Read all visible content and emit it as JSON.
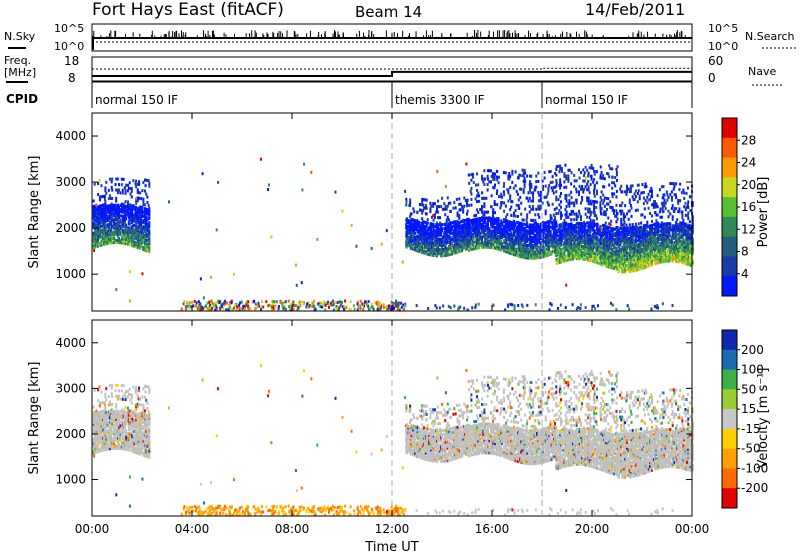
{
  "header": {
    "station": "Fort Hays East (fitACF)",
    "beam": "Beam 14",
    "date": "14/Feb/2011"
  },
  "strip_labels": {
    "nsky": "N.Sky",
    "nsearch": "N.Search",
    "freq": "Freq.",
    "freq_unit": "[MHz]",
    "nave": "Nave",
    "cpid": "CPID",
    "nsky_top": "10^5",
    "nsky_bottom": "10^0",
    "nsearch_top": "10^5",
    "nsearch_bottom": "10^0",
    "freq_top": "18",
    "freq_bottom": "8",
    "nave_top": "60",
    "nave_bottom": "0"
  },
  "cpid_segments": [
    {
      "label": "normal 150 IF",
      "start_hour": 0
    },
    {
      "label": "themis 3300 IF",
      "start_hour": 12
    },
    {
      "label": "normal 150 IF",
      "start_hour": 18
    }
  ],
  "time_axis": {
    "label": "Time UT",
    "ticks": [
      "00:00",
      "04:00",
      "08:00",
      "12:00",
      "16:00",
      "20:00",
      "00:00"
    ]
  },
  "colors": {
    "power_scale": [
      "#0018ff",
      "#1a3aa8",
      "#24607e",
      "#2f8a55",
      "#58c030",
      "#c8d820",
      "#ff9a00",
      "#ff5a00",
      "#e00000"
    ],
    "velocity_scale": [
      "#e00000",
      "#ff6a00",
      "#ffa000",
      "#ffd000",
      "#c8c8c8",
      "#9acd32",
      "#3cb043",
      "#1a6ab0",
      "#1028b0"
    ],
    "ground_scatter": "#c0c0c0"
  },
  "chart_data": {
    "type": "heatmap",
    "x_unit": "hours UT",
    "xlim": [
      0,
      24
    ],
    "ylim": [
      200,
      4500
    ],
    "y_ticks": [
      "4000",
      "3000",
      "2000",
      "1000"
    ],
    "nsky_level": 1.6,
    "nsearch_level": 1.4,
    "frequency": [
      {
        "start_hour": 0,
        "end_hour": 12,
        "mhz": 10.1
      },
      {
        "start_hour": 12,
        "end_hour": 24,
        "mhz": 11.8
      }
    ],
    "nave": [
      {
        "start_hour": 0,
        "end_hour": 18,
        "value": 30
      },
      {
        "start_hour": 18,
        "end_hour": 24,
        "value": 32
      }
    ],
    "panels": [
      {
        "name": "power",
        "ylabel": "Slant Range [km]",
        "colorbar_label": "Power [dB]",
        "colorbar_ticks": [
          "28",
          "24",
          "20",
          "16",
          "12",
          "8",
          "4"
        ],
        "range": [
          0,
          30
        ]
      },
      {
        "name": "velocity",
        "ylabel": "Slant Range [km]",
        "colorbar_label": "Velocity [m s⁻¹]",
        "colorbar_ticks": [
          "200",
          "100",
          "50",
          "15",
          "-15",
          "-50",
          "-100",
          "-200"
        ],
        "range": [
          -250,
          250
        ]
      }
    ],
    "scatter_regions": [
      {
        "start_hour": 0.0,
        "end_hour": 2.3,
        "low_km": 1600,
        "high_km": 2500,
        "top_km": 3100,
        "power_db": 13
      },
      {
        "start_hour": 12.5,
        "end_hour": 15.0,
        "low_km": 1550,
        "high_km": 2200,
        "top_km": 2700,
        "power_db": 11
      },
      {
        "start_hour": 15.0,
        "end_hour": 18.5,
        "low_km": 1500,
        "high_km": 2200,
        "top_km": 3300,
        "power_db": 12
      },
      {
        "start_hour": 18.5,
        "end_hour": 21.0,
        "low_km": 1250,
        "high_km": 2100,
        "top_km": 3400,
        "power_db": 16
      },
      {
        "start_hour": 21.0,
        "end_hour": 24.0,
        "low_km": 1200,
        "high_km": 2100,
        "top_km": 3000,
        "power_db": 18
      }
    ],
    "near_range_band": {
      "start_hour": 3.5,
      "end_hour": 12.5,
      "low_km": 250,
      "high_km": 450
    }
  }
}
